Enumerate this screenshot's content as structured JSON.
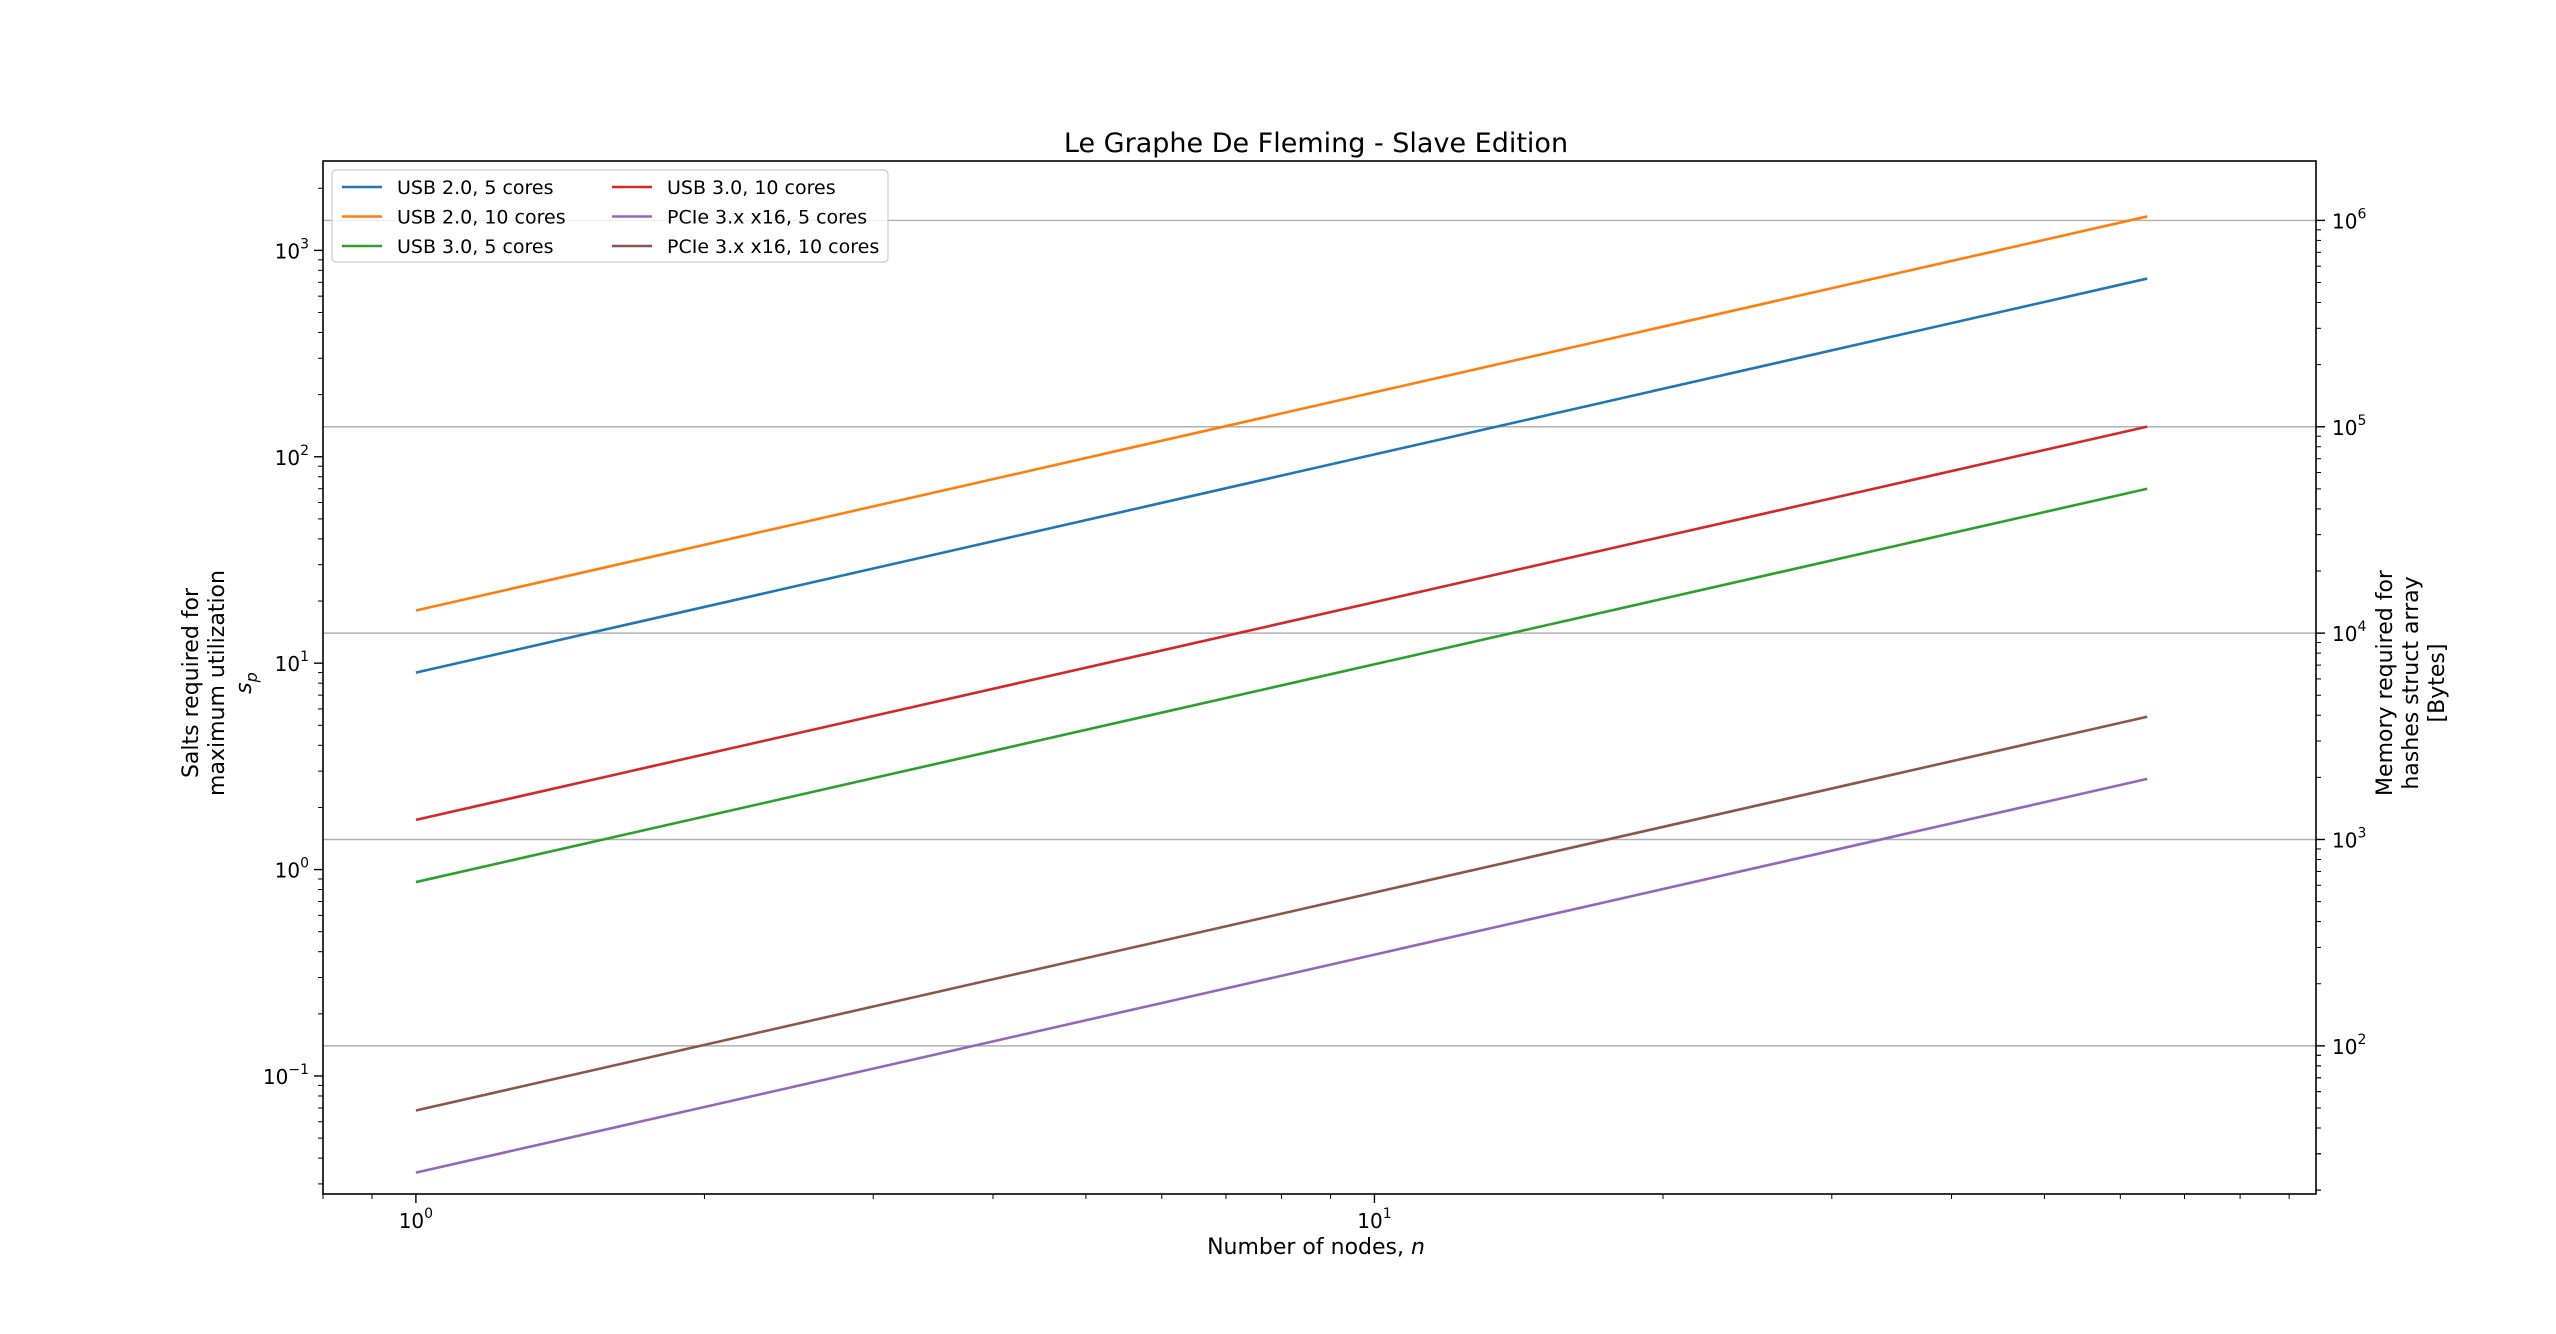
{
  "chart_data": {
    "type": "line",
    "title": "Le Graphe De Fleming - Slave Edition",
    "xlabel": "Number of nodes, n",
    "xlabel_parts": {
      "text": "Number of nodes, ",
      "var": "n"
    },
    "ylabel_lines": [
      "Salts required for",
      "maximum utilization"
    ],
    "ylabel_symbol": {
      "base": "s",
      "sub": "p"
    },
    "y2label_lines": [
      "Memory required for",
      "hashes struct array",
      "[Bytes]"
    ],
    "x_scale": "log",
    "y_scale": "log",
    "y2_scale": "log",
    "xlim": [
      0.8,
      96
    ],
    "ylim": [
      0.0268,
      2710
    ],
    "y2lim": [
      19.15,
      1940000
    ],
    "grid": "horizontal lines at right-axis major ticks",
    "legend": {
      "placement": "upper-left",
      "columns": 2
    },
    "x_ticks": [
      {
        "value": 1,
        "base": "10",
        "exp": "0"
      },
      {
        "value": 10,
        "base": "10",
        "exp": "1"
      }
    ],
    "y_ticks": [
      {
        "value": 0.1,
        "base": "10",
        "exp": "−1"
      },
      {
        "value": 1,
        "base": "10",
        "exp": "0"
      },
      {
        "value": 10,
        "base": "10",
        "exp": "1"
      },
      {
        "value": 100,
        "base": "10",
        "exp": "2"
      },
      {
        "value": 1000,
        "base": "10",
        "exp": "3"
      }
    ],
    "y2_ticks": [
      {
        "value": 100,
        "base": "10",
        "exp": "2"
      },
      {
        "value": 1000,
        "base": "10",
        "exp": "3"
      },
      {
        "value": 10000,
        "base": "10",
        "exp": "4"
      },
      {
        "value": 100000,
        "base": "10",
        "exp": "5"
      },
      {
        "value": 1000000,
        "base": "10",
        "exp": "6"
      }
    ],
    "x": [
      1,
      64
    ],
    "series": [
      {
        "name": "USB 2.0, 5 cores",
        "color": "#1f77b4",
        "values": [
          9.0,
          730
        ]
      },
      {
        "name": "USB 2.0, 10 cores",
        "color": "#ff7f0e",
        "values": [
          18.0,
          1460
        ]
      },
      {
        "name": "USB 3.0, 5 cores",
        "color": "#2ca02c",
        "values": [
          0.87,
          70
        ]
      },
      {
        "name": "USB 3.0, 10 cores",
        "color": "#d62728",
        "values": [
          1.74,
          140
        ]
      },
      {
        "name": "PCIe 3.x x16, 5 cores",
        "color": "#9467bd",
        "values": [
          0.034,
          2.75
        ]
      },
      {
        "name": "PCIe 3.x x16, 10 cores",
        "color": "#8c564b",
        "values": [
          0.068,
          5.5
        ]
      }
    ]
  }
}
